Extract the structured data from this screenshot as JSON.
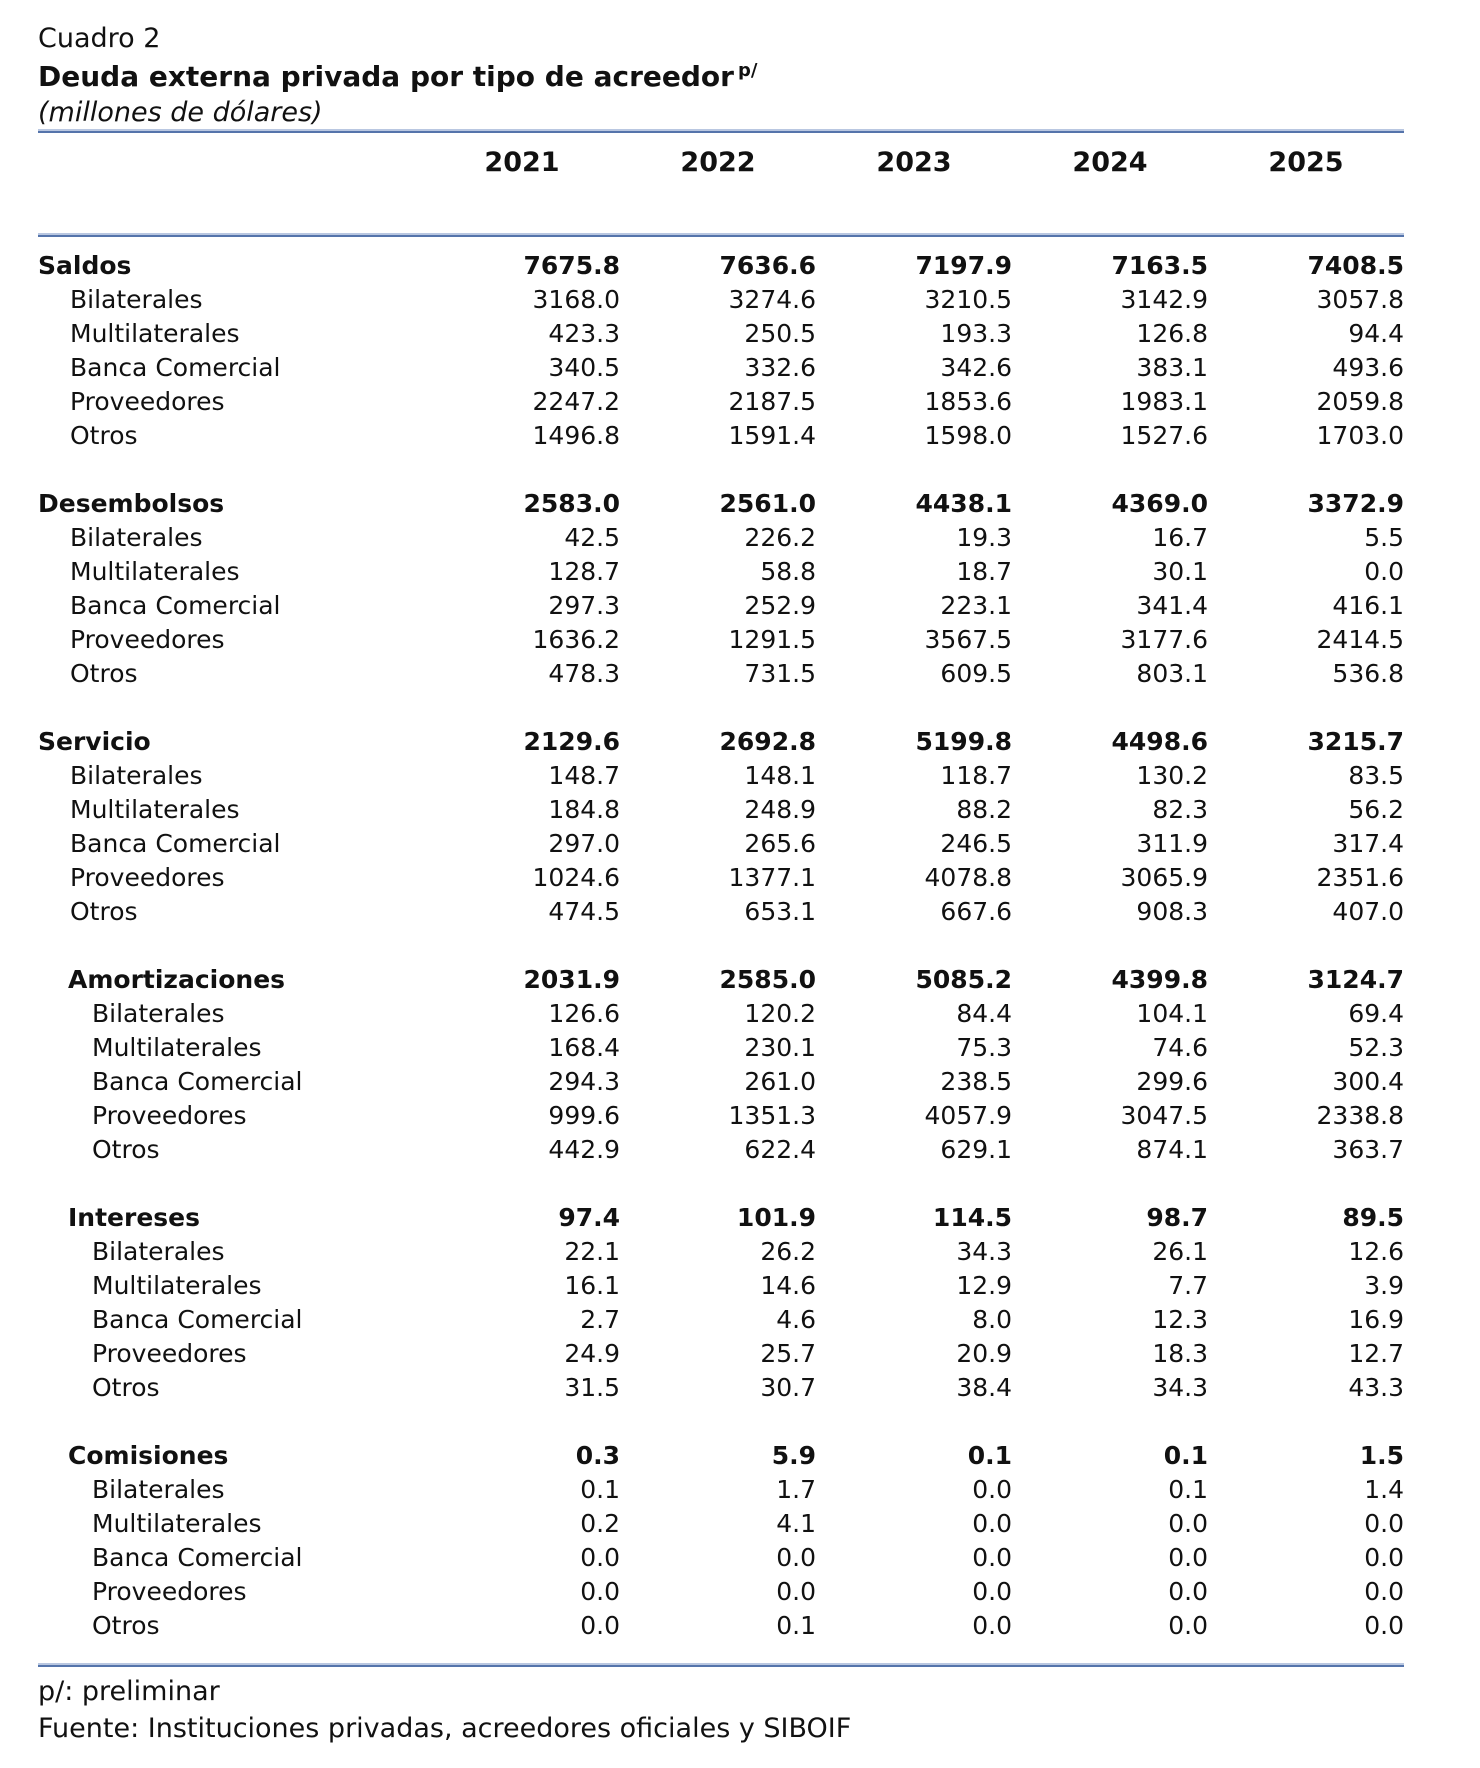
{
  "header": {
    "table_number": "Cuadro 2",
    "title": "Deuda externa privada por tipo de acreedor",
    "title_superscript": "p/",
    "subtitle": "(millones de dólares)"
  },
  "columns": [
    "2021",
    "2022",
    "2023",
    "2024",
    "2025"
  ],
  "row_labels": [
    "Bilaterales",
    "Multilaterales",
    "Banca Comercial",
    "Proveedores",
    "Otros"
  ],
  "sections": [
    {
      "name": "Saldos",
      "indented": false,
      "total": [
        "7675.8",
        "7636.6",
        "7197.9",
        "7163.5",
        "7408.5"
      ],
      "rows": [
        [
          "3168.0",
          "3274.6",
          "3210.5",
          "3142.9",
          "3057.8"
        ],
        [
          "423.3",
          "250.5",
          "193.3",
          "126.8",
          "94.4"
        ],
        [
          "340.5",
          "332.6",
          "342.6",
          "383.1",
          "493.6"
        ],
        [
          "2247.2",
          "2187.5",
          "1853.6",
          "1983.1",
          "2059.8"
        ],
        [
          "1496.8",
          "1591.4",
          "1598.0",
          "1527.6",
          "1703.0"
        ]
      ]
    },
    {
      "name": "Desembolsos",
      "indented": false,
      "total": [
        "2583.0",
        "2561.0",
        "4438.1",
        "4369.0",
        "3372.9"
      ],
      "rows": [
        [
          "42.5",
          "226.2",
          "19.3",
          "16.7",
          "5.5"
        ],
        [
          "128.7",
          "58.8",
          "18.7",
          "30.1",
          "0.0"
        ],
        [
          "297.3",
          "252.9",
          "223.1",
          "341.4",
          "416.1"
        ],
        [
          "1636.2",
          "1291.5",
          "3567.5",
          "3177.6",
          "2414.5"
        ],
        [
          "478.3",
          "731.5",
          "609.5",
          "803.1",
          "536.8"
        ]
      ]
    },
    {
      "name": "Servicio",
      "indented": false,
      "total": [
        "2129.6",
        "2692.8",
        "5199.8",
        "4498.6",
        "3215.7"
      ],
      "rows": [
        [
          "148.7",
          "148.1",
          "118.7",
          "130.2",
          "83.5"
        ],
        [
          "184.8",
          "248.9",
          "88.2",
          "82.3",
          "56.2"
        ],
        [
          "297.0",
          "265.6",
          "246.5",
          "311.9",
          "317.4"
        ],
        [
          "1024.6",
          "1377.1",
          "4078.8",
          "3065.9",
          "2351.6"
        ],
        [
          "474.5",
          "653.1",
          "667.6",
          "908.3",
          "407.0"
        ]
      ]
    },
    {
      "name": "Amortizaciones",
      "indented": true,
      "total": [
        "2031.9",
        "2585.0",
        "5085.2",
        "4399.8",
        "3124.7"
      ],
      "rows": [
        [
          "126.6",
          "120.2",
          "84.4",
          "104.1",
          "69.4"
        ],
        [
          "168.4",
          "230.1",
          "75.3",
          "74.6",
          "52.3"
        ],
        [
          "294.3",
          "261.0",
          "238.5",
          "299.6",
          "300.4"
        ],
        [
          "999.6",
          "1351.3",
          "4057.9",
          "3047.5",
          "2338.8"
        ],
        [
          "442.9",
          "622.4",
          "629.1",
          "874.1",
          "363.7"
        ]
      ]
    },
    {
      "name": "Intereses",
      "indented": true,
      "total": [
        "97.4",
        "101.9",
        "114.5",
        "98.7",
        "89.5"
      ],
      "rows": [
        [
          "22.1",
          "26.2",
          "34.3",
          "26.1",
          "12.6"
        ],
        [
          "16.1",
          "14.6",
          "12.9",
          "7.7",
          "3.9"
        ],
        [
          "2.7",
          "4.6",
          "8.0",
          "12.3",
          "16.9"
        ],
        [
          "24.9",
          "25.7",
          "20.9",
          "18.3",
          "12.7"
        ],
        [
          "31.5",
          "30.7",
          "38.4",
          "34.3",
          "43.3"
        ]
      ]
    },
    {
      "name": "Comisiones",
      "indented": true,
      "total": [
        "0.3",
        "5.9",
        "0.1",
        "0.1",
        "1.5"
      ],
      "rows": [
        [
          "0.1",
          "1.7",
          "0.0",
          "0.1",
          "1.4"
        ],
        [
          "0.2",
          "4.1",
          "0.0",
          "0.0",
          "0.0"
        ],
        [
          "0.0",
          "0.0",
          "0.0",
          "0.0",
          "0.0"
        ],
        [
          "0.0",
          "0.0",
          "0.0",
          "0.0",
          "0.0"
        ],
        [
          "0.0",
          "0.1",
          "0.0",
          "0.0",
          "0.0"
        ]
      ]
    }
  ],
  "footer": {
    "note": "p/: preliminar",
    "source": "Fuente: Instituciones privadas, acreedores oficiales y SIBOIF"
  },
  "colors": {
    "rule_dark": "#5574ab",
    "rule_light": "#b9c7e1",
    "text": "#111111",
    "background": "#ffffff"
  }
}
